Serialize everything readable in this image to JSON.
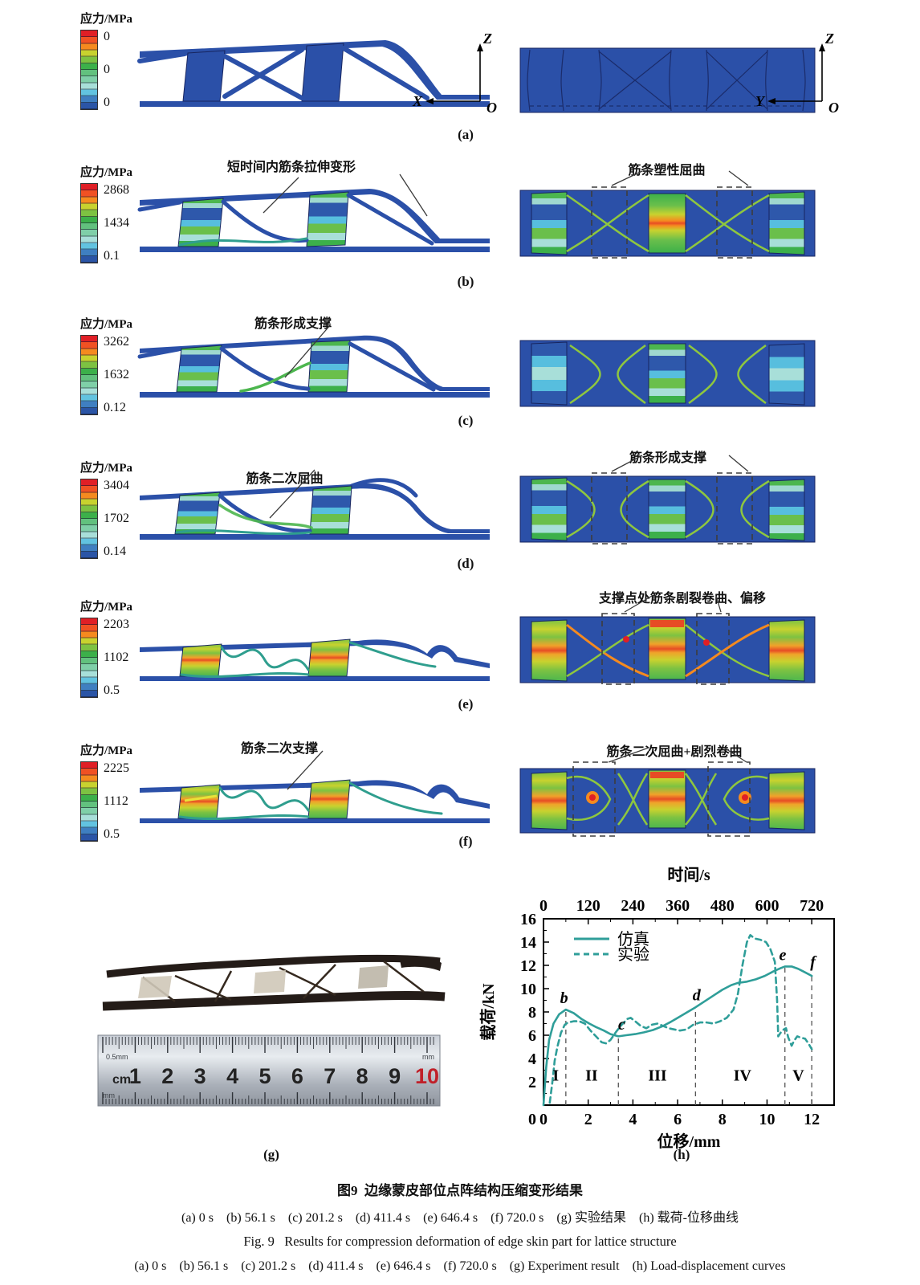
{
  "palette": {
    "stress_colors": [
      "#e01f26",
      "#f05123",
      "#f58a1f",
      "#c8d22f",
      "#7dc242",
      "#3cb04a",
      "#62c17e",
      "#7fcfa8",
      "#a8dfd9",
      "#62c3e0",
      "#3f7fc1",
      "#2b55a6"
    ],
    "structure_blue": "#2b50a8",
    "curve_teal": "#2f9e99"
  },
  "rows": {
    "a": {
      "label": "(a)",
      "colorbar": {
        "title": "应力/MPa",
        "max": "0",
        "mid": "0",
        "min": "0"
      },
      "axes_left": {
        "up": "Z",
        "side": "X",
        "origin": "O"
      },
      "axes_right": {
        "up": "Z",
        "side": "Y",
        "origin": "O"
      }
    },
    "b": {
      "label": "(b)",
      "colorbar": {
        "title": "应力/MPa",
        "max": "2868",
        "mid": "1434",
        "min": "0.1"
      },
      "annotation_left": "短时间内筋条拉伸变形",
      "annotation_right": "筋条塑性屈曲"
    },
    "c": {
      "label": "(c)",
      "colorbar": {
        "title": "应力/MPa",
        "max": "3262",
        "mid": "1632",
        "min": "0.12"
      },
      "annotation_left": "筋条形成支撑"
    },
    "d": {
      "label": "(d)",
      "colorbar": {
        "title": "应力/MPa",
        "max": "3404",
        "mid": "1702",
        "min": "0.14"
      },
      "annotation_left": "筋条二次屈曲",
      "annotation_right": "筋条形成支撑"
    },
    "e": {
      "label": "(e)",
      "colorbar": {
        "title": "应力/MPa",
        "max": "2203",
        "mid": "1102",
        "min": "0.5"
      },
      "annotation_right": "支撑点处筋条剧裂卷曲、偏移"
    },
    "f": {
      "label": "(f)",
      "colorbar": {
        "title": "应力/MPa",
        "max": "2225",
        "mid": "1112",
        "min": "0.5"
      },
      "annotation_left": "筋条二次支撑",
      "annotation_right": "筋条二次屈曲+剧烈卷曲"
    }
  },
  "photo": {
    "label": "(g)",
    "ruler": {
      "unit_left": "cm",
      "numbers": [
        "1",
        "2",
        "3",
        "4",
        "5",
        "6",
        "7",
        "8",
        "9",
        "10"
      ],
      "red_number": "10",
      "top_left": "0.5mm",
      "top_right": "mm",
      "bottom_left": "mm"
    }
  },
  "chart_data": {
    "type": "line",
    "panel_label": "(h)",
    "top_xlabel": "时间/s",
    "xlabel": "位移/mm",
    "ylabel": "载荷/kN",
    "color": "#2f9e99",
    "xlim": [
      0,
      13
    ],
    "ylim": [
      0,
      16
    ],
    "top_xlim": [
      0,
      780
    ],
    "xticks": [
      0,
      2,
      4,
      6,
      8,
      10,
      12
    ],
    "yticks": [
      2,
      4,
      6,
      8,
      10,
      12,
      14,
      16
    ],
    "top_xticks": [
      0,
      120,
      240,
      360,
      480,
      600,
      720
    ],
    "grid": false,
    "legend_position": "upper-left-inside",
    "legend": [
      {
        "label": "仿真",
        "style": "solid"
      },
      {
        "label": "实验",
        "style": "dashed"
      }
    ],
    "series": [
      {
        "name": "仿真",
        "style": "solid",
        "points": [
          [
            0,
            0
          ],
          [
            0.12,
            3.2
          ],
          [
            0.25,
            5.6
          ],
          [
            0.45,
            7.0
          ],
          [
            0.7,
            7.8
          ],
          [
            1.0,
            8.2
          ],
          [
            1.35,
            7.9
          ],
          [
            1.7,
            7.4
          ],
          [
            2.05,
            7.0
          ],
          [
            2.35,
            6.7
          ],
          [
            2.7,
            6.4
          ],
          [
            3.0,
            6.1
          ],
          [
            3.35,
            5.9
          ],
          [
            3.7,
            6.0
          ],
          [
            4.1,
            6.1
          ],
          [
            4.5,
            6.25
          ],
          [
            4.9,
            6.45
          ],
          [
            5.3,
            6.75
          ],
          [
            5.7,
            7.15
          ],
          [
            6.1,
            7.6
          ],
          [
            6.45,
            8.0
          ],
          [
            6.8,
            8.4
          ],
          [
            7.2,
            8.9
          ],
          [
            7.6,
            9.4
          ],
          [
            8.0,
            9.9
          ],
          [
            8.4,
            10.3
          ],
          [
            8.7,
            10.5
          ],
          [
            9.1,
            10.6
          ],
          [
            9.5,
            10.8
          ],
          [
            9.9,
            11.1
          ],
          [
            10.3,
            11.5
          ],
          [
            10.6,
            11.75
          ],
          [
            10.8,
            11.9
          ],
          [
            11.1,
            11.9
          ],
          [
            11.4,
            11.7
          ],
          [
            11.7,
            11.4
          ],
          [
            12.0,
            11.1
          ]
        ]
      },
      {
        "name": "实验",
        "style": "dashed",
        "points": [
          [
            0.28,
            0.2
          ],
          [
            0.4,
            2.0
          ],
          [
            0.5,
            3.8
          ],
          [
            0.62,
            5.0
          ],
          [
            0.78,
            6.2
          ],
          [
            0.95,
            6.9
          ],
          [
            1.1,
            7.1
          ],
          [
            1.35,
            7.2
          ],
          [
            1.6,
            7.2
          ],
          [
            1.85,
            7.0
          ],
          [
            2.1,
            6.4
          ],
          [
            2.35,
            5.9
          ],
          [
            2.6,
            5.4
          ],
          [
            2.8,
            5.3
          ],
          [
            3.0,
            5.6
          ],
          [
            3.25,
            6.3
          ],
          [
            3.5,
            6.9
          ],
          [
            3.75,
            7.4
          ],
          [
            3.9,
            7.5
          ],
          [
            4.1,
            7.2
          ],
          [
            4.35,
            6.8
          ],
          [
            4.6,
            6.6
          ],
          [
            4.85,
            6.9
          ],
          [
            5.1,
            7.0
          ],
          [
            5.35,
            6.8
          ],
          [
            5.6,
            6.6
          ],
          [
            5.85,
            6.5
          ],
          [
            6.1,
            6.4
          ],
          [
            6.4,
            6.5
          ],
          [
            6.7,
            6.9
          ],
          [
            7.0,
            7.1
          ],
          [
            7.3,
            7.1
          ],
          [
            7.6,
            7.0
          ],
          [
            7.9,
            7.2
          ],
          [
            8.2,
            7.5
          ],
          [
            8.5,
            8.2
          ],
          [
            8.7,
            9.6
          ],
          [
            8.9,
            12.0
          ],
          [
            9.1,
            14.0
          ],
          [
            9.25,
            14.6
          ],
          [
            9.45,
            14.3
          ],
          [
            9.7,
            14.2
          ],
          [
            9.95,
            14.0
          ],
          [
            10.15,
            13.4
          ],
          [
            10.35,
            12.3
          ],
          [
            10.45,
            9.0
          ],
          [
            10.5,
            5.9
          ],
          [
            10.6,
            6.2
          ],
          [
            10.75,
            6.5
          ],
          [
            10.85,
            6.6
          ],
          [
            10.95,
            5.8
          ],
          [
            11.1,
            5.1
          ],
          [
            11.2,
            5.5
          ],
          [
            11.35,
            5.9
          ],
          [
            11.5,
            5.8
          ],
          [
            11.7,
            5.7
          ],
          [
            11.85,
            5.3
          ],
          [
            12.0,
            4.8
          ]
        ]
      }
    ],
    "dividers": [
      {
        "x": 1.0,
        "ytop": 8.2
      },
      {
        "x": 3.35,
        "ytop": 5.9
      },
      {
        "x": 6.8,
        "ytop": 8.4
      },
      {
        "x": 10.8,
        "ytop": 11.9
      },
      {
        "x": 12.0,
        "ytop": 11.1
      }
    ],
    "region_labels": [
      {
        "text": "I",
        "x": 0.55,
        "y": 2.1
      },
      {
        "text": "II",
        "x": 2.15,
        "y": 2.1
      },
      {
        "text": "III",
        "x": 5.1,
        "y": 2.1
      },
      {
        "text": "IV",
        "x": 8.9,
        "y": 2.1
      },
      {
        "text": "V",
        "x": 11.4,
        "y": 2.1
      }
    ],
    "point_labels": [
      {
        "text": "b",
        "x": 0.92,
        "y": 8.75
      },
      {
        "text": "c",
        "x": 3.5,
        "y": 6.5
      },
      {
        "text": "d",
        "x": 6.85,
        "y": 9.0
      },
      {
        "text": "e",
        "x": 10.7,
        "y": 12.45
      },
      {
        "text": "f",
        "x": 12.05,
        "y": 11.85
      }
    ]
  },
  "caption": {
    "line1": "图9  边缘蒙皮部位点阵结构压缩变形结果",
    "line2": "(a) 0 s    (b) 56.1 s    (c) 201.2 s    (d) 411.4 s    (e) 646.4 s    (f) 720.0 s    (g) 实验结果    (h) 载荷-位移曲线",
    "line3": "Fig. 9   Results for compression deformation of edge skin part for lattice structure",
    "line4": "(a) 0 s    (b) 56.1 s    (c) 201.2 s    (d) 411.4 s    (e) 646.4 s    (f) 720.0 s    (g) Experiment result    (h) Load-displacement curves"
  }
}
